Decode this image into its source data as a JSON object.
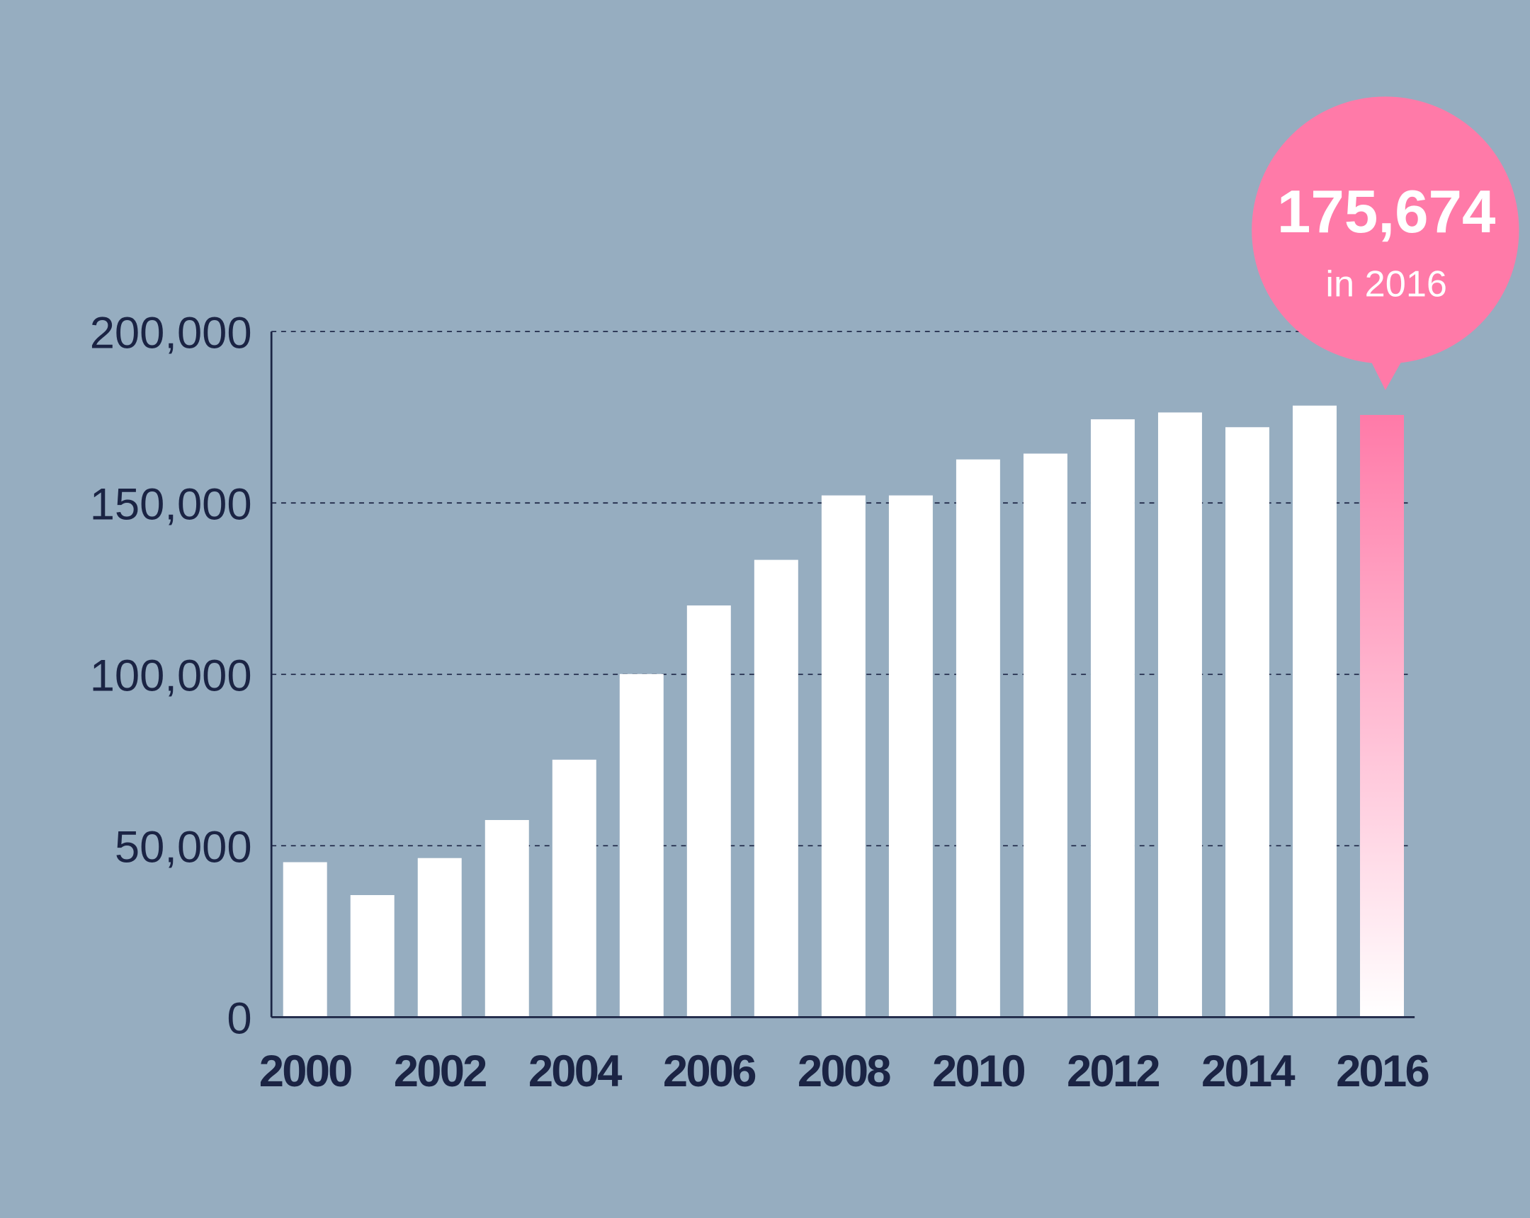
{
  "chart_data": {
    "type": "bar",
    "title": "",
    "xlabel": "",
    "ylabel": "",
    "ylim": [
      0,
      200000
    ],
    "yticks": [
      0,
      50000,
      100000,
      150000,
      200000
    ],
    "ytick_labels": [
      "0",
      "50,000",
      "100,000",
      "150,000",
      "200,000"
    ],
    "categories": [
      "2000",
      "2001",
      "2002",
      "2003",
      "2004",
      "2005",
      "2006",
      "2007",
      "2008",
      "2009",
      "2010",
      "2011",
      "2012",
      "2013",
      "2014",
      "2015",
      "2016"
    ],
    "xtick_labels": [
      "2000",
      "2002",
      "2004",
      "2006",
      "2008",
      "2010",
      "2012",
      "2014",
      "2016"
    ],
    "values": [
      45200,
      35600,
      46400,
      57500,
      75100,
      100100,
      120100,
      133400,
      152200,
      152200,
      162700,
      164400,
      174400,
      176400,
      172100,
      178400,
      175674
    ],
    "grid": true,
    "highlight": {
      "category": "2016",
      "value_label": "175,674",
      "sub_label": "in 2016"
    },
    "colors": {
      "background": "#96adc0",
      "bar": "#ffffff",
      "highlight": "#ff7aa8",
      "text": "#1b2444"
    }
  }
}
